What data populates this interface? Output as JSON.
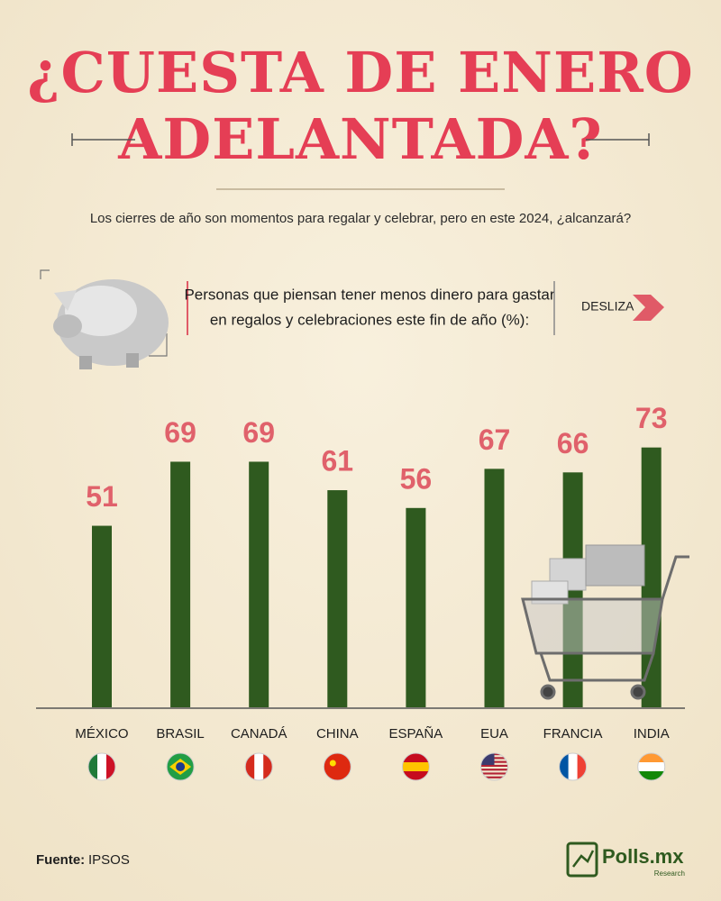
{
  "title_line1": "¿CUESTA DE ENERO",
  "title_line2": "ADELANTADA?",
  "subtitle": "Los cierres de año son momentos para regalar y celebrar, pero en este 2024, ¿alcanzará?",
  "swipe": "DESLIZA",
  "source_label": "Fuente:",
  "source": "IPSOS",
  "brand": "Polls.mx",
  "brand_sub": "Research",
  "chart_data": {
    "type": "bar",
    "title_lines": [
      "Personas que piensan tener menos dinero para gastar",
      "en regalos y celebraciones este fin de año (%):"
    ],
    "categories": [
      "MÉXICO",
      "BRASIL",
      "CANADÁ",
      "CHINA",
      "ESPAÑA",
      "EUA",
      "FRANCIA",
      "INDIA"
    ],
    "values": [
      51,
      69,
      69,
      61,
      56,
      67,
      66,
      73
    ],
    "color": "#2f5a1f",
    "label_color": "#e0616b"
  }
}
